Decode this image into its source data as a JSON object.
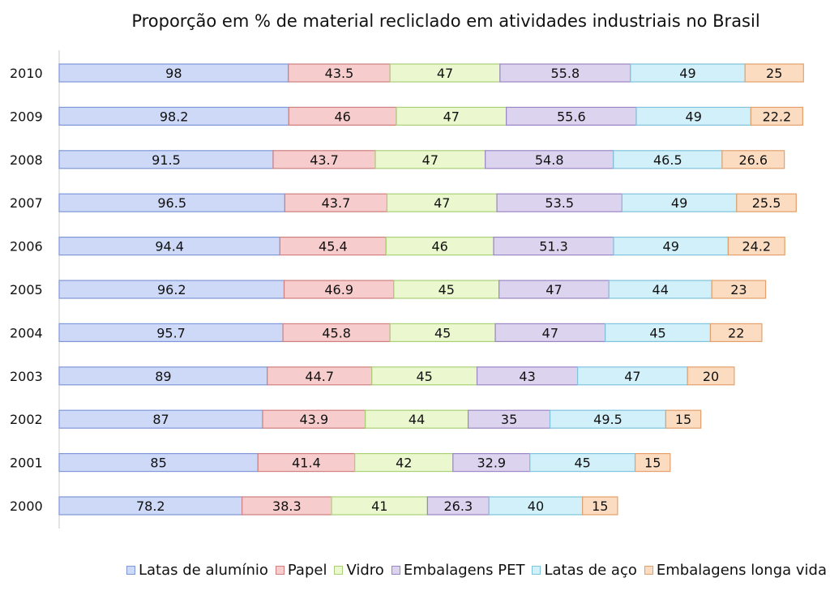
{
  "chart_data": {
    "type": "bar",
    "orientation": "horizontal",
    "stacked": true,
    "title": "Proporção em % de material recliclado em atividades industriais no Brasil",
    "xlabel": "",
    "ylabel": "",
    "grid": false,
    "legend_position": "bottom",
    "categories": [
      "2010",
      "2009",
      "2008",
      "2007",
      "2006",
      "2005",
      "2004",
      "2003",
      "2002",
      "2001",
      "2000"
    ],
    "series": [
      {
        "name": "Latas de alumínio",
        "fill": "#cdd9f7",
        "stroke": "#7f97d9",
        "values": [
          98,
          98.2,
          91.5,
          96.5,
          94.4,
          96.2,
          95.7,
          89,
          87,
          85,
          78.2
        ]
      },
      {
        "name": "Papel",
        "fill": "#f7cccc",
        "stroke": "#cf7f7f",
        "values": [
          43.5,
          46,
          43.7,
          43.7,
          45.4,
          46.9,
          45.8,
          44.7,
          43.9,
          41.4,
          38.3
        ]
      },
      {
        "name": "Vidro",
        "fill": "#ebf8cf",
        "stroke": "#a9cf77",
        "values": [
          47,
          47,
          47,
          47,
          46,
          45,
          45,
          45,
          44,
          42,
          41
        ]
      },
      {
        "name": "Embalagens PET",
        "fill": "#dcd3ee",
        "stroke": "#9a86c4",
        "values": [
          55.8,
          55.6,
          54.8,
          53.5,
          51.3,
          47,
          47,
          43,
          35,
          32.9,
          26.3
        ]
      },
      {
        "name": "Latas de aço",
        "fill": "#d2f0f9",
        "stroke": "#7fc3dc",
        "values": [
          49,
          49,
          46.5,
          49,
          49,
          44,
          45,
          47,
          49.5,
          45,
          40
        ]
      },
      {
        "name": "Embalagens longa vida",
        "fill": "#fbdcc1",
        "stroke": "#e3a06c",
        "values": [
          25,
          22.2,
          26.6,
          25.5,
          24.2,
          23,
          22,
          20,
          15,
          15,
          15
        ]
      }
    ],
    "data_labels": [
      [
        "98",
        "43.5",
        "47",
        "55.8",
        "49",
        "25"
      ],
      [
        "98.2",
        "46",
        "47",
        "55.6",
        "49",
        "22.2"
      ],
      [
        "91.5",
        "43.7",
        "47",
        "54.8",
        "46.5",
        "26.6"
      ],
      [
        "96.5",
        "43.7",
        "47",
        "53.5",
        "49",
        "25.5"
      ],
      [
        "94.4",
        "45.4",
        "46",
        "51.3",
        "49",
        "24.2"
      ],
      [
        "96.2",
        "46.9",
        "45",
        "47",
        "44",
        "23"
      ],
      [
        "95.7",
        "45.8",
        "45",
        "47",
        "45",
        "22"
      ],
      [
        "89",
        "44.7",
        "45",
        "43",
        "47",
        "20"
      ],
      [
        "87",
        "43.9",
        "44",
        "35",
        "49.5",
        "15"
      ],
      [
        "85",
        "41.4",
        "42",
        "32.9",
        "45",
        "15"
      ],
      [
        "78.2",
        "38.3",
        "41",
        "26.3",
        "40",
        "15"
      ]
    ]
  }
}
